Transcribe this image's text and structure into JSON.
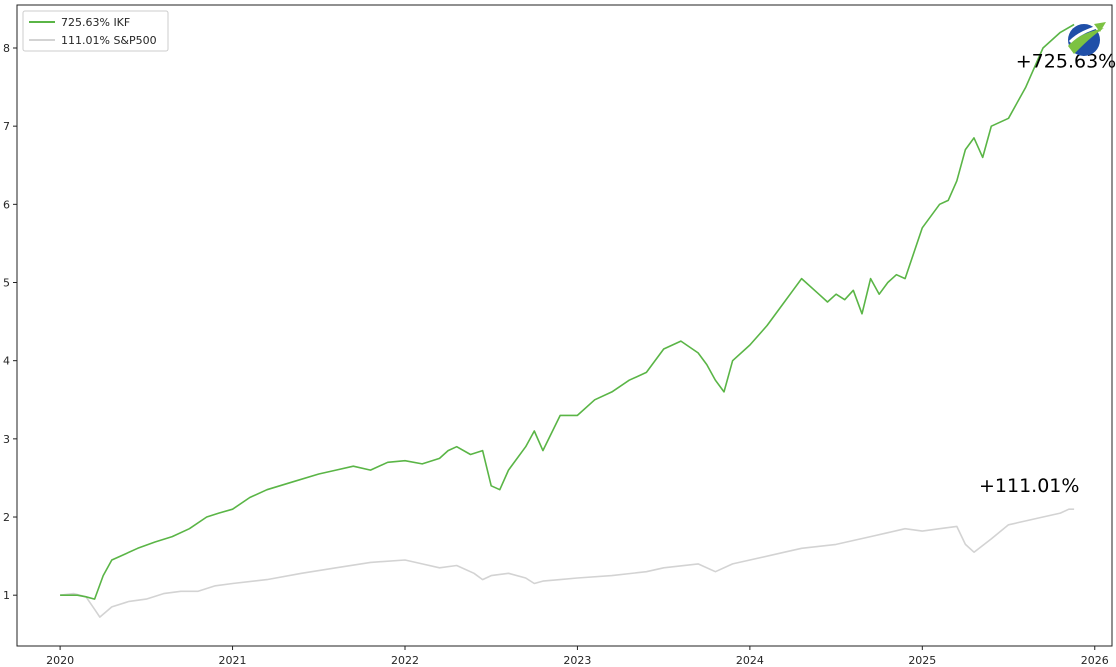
{
  "chart_data": {
    "type": "line",
    "title": "",
    "xlabel": "",
    "ylabel": "",
    "xlim": [
      2019.75,
      2026.1
    ],
    "ylim": [
      0.35,
      8.55
    ],
    "x_ticks": [
      "2020",
      "2021",
      "2022",
      "2023",
      "2024",
      "2025",
      "2026"
    ],
    "y_ticks": [
      "1",
      "2",
      "3",
      "4",
      "5",
      "6",
      "7",
      "8"
    ],
    "grid": false,
    "legend_position": "top-left",
    "series": [
      {
        "name": "725.63% IKF",
        "color": "#5ab546",
        "x": [
          2020.0,
          2020.1,
          2020.15,
          2020.2,
          2020.25,
          2020.3,
          2020.35,
          2020.45,
          2020.55,
          2020.65,
          2020.75,
          2020.85,
          2020.92,
          2021.0,
          2021.1,
          2021.2,
          2021.35,
          2021.5,
          2021.6,
          2021.7,
          2021.8,
          2021.9,
          2022.0,
          2022.1,
          2022.2,
          2022.25,
          2022.3,
          2022.38,
          2022.45,
          2022.5,
          2022.55,
          2022.6,
          2022.7,
          2022.75,
          2022.8,
          2022.9,
          2023.0,
          2023.1,
          2023.2,
          2023.3,
          2023.4,
          2023.5,
          2023.6,
          2023.7,
          2023.75,
          2023.8,
          2023.85,
          2023.9,
          2024.0,
          2024.1,
          2024.2,
          2024.25,
          2024.3,
          2024.4,
          2024.45,
          2024.5,
          2024.55,
          2024.6,
          2024.65,
          2024.7,
          2024.75,
          2024.8,
          2024.85,
          2024.9,
          2025.0,
          2025.1,
          2025.15,
          2025.2,
          2025.25,
          2025.3,
          2025.35,
          2025.4,
          2025.5,
          2025.6,
          2025.7,
          2025.8,
          2025.88
        ],
        "y": [
          1.0,
          1.0,
          0.98,
          0.95,
          1.25,
          1.45,
          1.5,
          1.6,
          1.68,
          1.75,
          1.85,
          2.0,
          2.05,
          2.1,
          2.25,
          2.35,
          2.45,
          2.55,
          2.6,
          2.65,
          2.6,
          2.7,
          2.72,
          2.68,
          2.75,
          2.85,
          2.9,
          2.8,
          2.85,
          2.4,
          2.35,
          2.6,
          2.9,
          3.1,
          2.85,
          3.3,
          3.3,
          3.5,
          3.6,
          3.75,
          3.85,
          4.15,
          4.25,
          4.1,
          3.95,
          3.75,
          3.6,
          4.0,
          4.2,
          4.45,
          4.75,
          4.9,
          5.05,
          4.85,
          4.75,
          4.85,
          4.78,
          4.9,
          4.6,
          5.05,
          4.85,
          5.0,
          5.1,
          5.05,
          5.7,
          6.0,
          6.05,
          6.3,
          6.7,
          6.85,
          6.6,
          7.0,
          7.1,
          7.5,
          8.0,
          8.2,
          8.3
        ]
      },
      {
        "name": "111.01% S&P500",
        "color": "#d3d3d3",
        "x": [
          2020.0,
          2020.08,
          2020.15,
          2020.2,
          2020.23,
          2020.3,
          2020.4,
          2020.5,
          2020.6,
          2020.7,
          2020.8,
          2020.9,
          2021.0,
          2021.2,
          2021.4,
          2021.6,
          2021.8,
          2022.0,
          2022.1,
          2022.2,
          2022.3,
          2022.4,
          2022.45,
          2022.5,
          2022.6,
          2022.7,
          2022.75,
          2022.8,
          2022.9,
          2023.0,
          2023.2,
          2023.4,
          2023.5,
          2023.7,
          2023.8,
          2023.9,
          2024.0,
          2024.2,
          2024.3,
          2024.5,
          2024.6,
          2024.7,
          2024.8,
          2024.9,
          2025.0,
          2025.1,
          2025.2,
          2025.25,
          2025.3,
          2025.4,
          2025.5,
          2025.6,
          2025.7,
          2025.8,
          2025.85,
          2025.88
        ],
        "y": [
          1.0,
          1.02,
          0.98,
          0.82,
          0.72,
          0.85,
          0.92,
          0.95,
          1.02,
          1.05,
          1.05,
          1.12,
          1.15,
          1.2,
          1.28,
          1.35,
          1.42,
          1.45,
          1.4,
          1.35,
          1.38,
          1.28,
          1.2,
          1.25,
          1.28,
          1.22,
          1.15,
          1.18,
          1.2,
          1.22,
          1.25,
          1.3,
          1.35,
          1.4,
          1.3,
          1.4,
          1.45,
          1.55,
          1.6,
          1.65,
          1.7,
          1.75,
          1.8,
          1.85,
          1.82,
          1.85,
          1.88,
          1.65,
          1.55,
          1.72,
          1.9,
          1.95,
          2.0,
          2.05,
          2.1,
          2.1
        ]
      }
    ],
    "annotations": [
      {
        "text": "+725.63%",
        "x": 2025.88,
        "y": 7.75
      },
      {
        "text": "+111.01%",
        "x": 2025.62,
        "y": 2.32
      }
    ],
    "logo_icon": "swoosh-globe-logo-icon"
  }
}
